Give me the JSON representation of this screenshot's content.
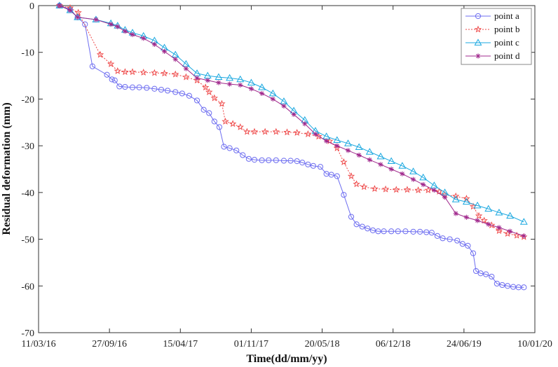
{
  "chart_data": {
    "type": "line",
    "title": "",
    "xlabel": "Time(dd/mm/yy)",
    "ylabel": "Residual deformation (mm)",
    "xlim": [
      "2016-03-11",
      "2020-01-10"
    ],
    "ylim": [
      -70,
      0
    ],
    "x_ticks": [
      "11/03/16",
      "27/09/16",
      "15/04/17",
      "01/11/17",
      "20/05/18",
      "06/12/18",
      "24/06/19",
      "10/01/20"
    ],
    "y_ticks": [
      0,
      -10,
      -20,
      -30,
      -40,
      -50,
      -60,
      -70
    ],
    "grid": false,
    "legend_position": "top-right",
    "series": [
      {
        "name": "point a",
        "color": "#6d6df0",
        "marker": "circle",
        "linestyle": "solid",
        "points": [
          [
            "2016-05-09",
            0
          ],
          [
            "2016-06-08",
            -0.8
          ],
          [
            "2016-06-29",
            -2.5
          ],
          [
            "2016-07-20",
            -4
          ],
          [
            "2016-08-10",
            -13
          ],
          [
            "2016-09-20",
            -14.8
          ],
          [
            "2016-10-04",
            -15.8
          ],
          [
            "2016-10-12",
            -16
          ],
          [
            "2016-10-25",
            -17.3
          ],
          [
            "2016-11-10",
            -17.4
          ],
          [
            "2016-12-01",
            -17.5
          ],
          [
            "2016-12-20",
            -17.5
          ],
          [
            "2017-01-10",
            -17.6
          ],
          [
            "2017-02-01",
            -17.8
          ],
          [
            "2017-02-20",
            -18
          ],
          [
            "2017-03-10",
            -18.2
          ],
          [
            "2017-04-01",
            -18.5
          ],
          [
            "2017-04-20",
            -18.8
          ],
          [
            "2017-05-10",
            -19.3
          ],
          [
            "2017-06-01",
            -20.3
          ],
          [
            "2017-06-20",
            -22.3
          ],
          [
            "2017-07-05",
            -23
          ],
          [
            "2017-07-20",
            -24.8
          ],
          [
            "2017-08-03",
            -26
          ],
          [
            "2017-08-16",
            -30.2
          ],
          [
            "2017-09-01",
            -30.5
          ],
          [
            "2017-09-20",
            -31
          ],
          [
            "2017-10-08",
            -32
          ],
          [
            "2017-10-25",
            -32.8
          ],
          [
            "2017-11-10",
            -33
          ],
          [
            "2017-12-01",
            -33.1
          ],
          [
            "2017-12-20",
            -33.1
          ],
          [
            "2018-01-10",
            -33.1
          ],
          [
            "2018-02-01",
            -33.2
          ],
          [
            "2018-02-20",
            -33.2
          ],
          [
            "2018-03-10",
            -33.3
          ],
          [
            "2018-03-25",
            -33.6
          ],
          [
            "2018-04-10",
            -34
          ],
          [
            "2018-04-25",
            -34.3
          ],
          [
            "2018-05-15",
            -34.5
          ],
          [
            "2018-06-01",
            -36
          ],
          [
            "2018-06-15",
            -36.2
          ],
          [
            "2018-07-01",
            -36.5
          ],
          [
            "2018-07-20",
            -40.5
          ],
          [
            "2018-08-10",
            -45.2
          ],
          [
            "2018-08-25",
            -46.8
          ],
          [
            "2018-09-10",
            -47.3
          ],
          [
            "2018-09-25",
            -47.7
          ],
          [
            "2018-10-10",
            -48.1
          ],
          [
            "2018-10-25",
            -48.3
          ],
          [
            "2018-11-10",
            -48.3
          ],
          [
            "2018-12-01",
            -48.3
          ],
          [
            "2018-12-20",
            -48.3
          ],
          [
            "2019-01-10",
            -48.3
          ],
          [
            "2019-02-01",
            -48.4
          ],
          [
            "2019-02-20",
            -48.4
          ],
          [
            "2019-03-10",
            -48.5
          ],
          [
            "2019-03-25",
            -48.6
          ],
          [
            "2019-04-10",
            -49.3
          ],
          [
            "2019-04-25",
            -49.8
          ],
          [
            "2019-05-15",
            -50
          ],
          [
            "2019-06-05",
            -50.3
          ],
          [
            "2019-06-20",
            -51
          ],
          [
            "2019-07-05",
            -51.4
          ],
          [
            "2019-07-20",
            -53
          ],
          [
            "2019-07-28",
            -56.8
          ],
          [
            "2019-08-10",
            -57.3
          ],
          [
            "2019-08-25",
            -57.5
          ],
          [
            "2019-09-10",
            -58
          ],
          [
            "2019-09-25",
            -59.5
          ],
          [
            "2019-10-10",
            -59.8
          ],
          [
            "2019-10-25",
            -60
          ],
          [
            "2019-11-10",
            -60.2
          ],
          [
            "2019-11-25",
            -60.3
          ],
          [
            "2019-12-10",
            -60.3
          ]
        ]
      },
      {
        "name": "point b",
        "color": "#ee4444",
        "marker": "star",
        "linestyle": "dotted",
        "points": [
          [
            "2016-05-09",
            0
          ],
          [
            "2016-06-08",
            -0.5
          ],
          [
            "2016-07-01",
            -1.5
          ],
          [
            "2016-09-01",
            -10.5
          ],
          [
            "2016-10-01",
            -12.5
          ],
          [
            "2016-10-20",
            -14
          ],
          [
            "2016-11-10",
            -14.2
          ],
          [
            "2016-12-01",
            -14.2
          ],
          [
            "2017-01-01",
            -14.3
          ],
          [
            "2017-02-01",
            -14.4
          ],
          [
            "2017-03-01",
            -14.5
          ],
          [
            "2017-04-01",
            -14.7
          ],
          [
            "2017-05-01",
            -15.3
          ],
          [
            "2017-06-01",
            -16
          ],
          [
            "2017-06-25",
            -17.5
          ],
          [
            "2017-07-05",
            -18.5
          ],
          [
            "2017-07-20",
            -19.8
          ],
          [
            "2017-08-10",
            -21
          ],
          [
            "2017-08-20",
            -24.8
          ],
          [
            "2017-09-10",
            -25.3
          ],
          [
            "2017-10-01",
            -26
          ],
          [
            "2017-10-20",
            -27
          ],
          [
            "2017-11-10",
            -27
          ],
          [
            "2017-12-10",
            -27
          ],
          [
            "2018-01-10",
            -27
          ],
          [
            "2018-02-10",
            -27.1
          ],
          [
            "2018-03-10",
            -27.2
          ],
          [
            "2018-04-10",
            -27.5
          ],
          [
            "2018-05-10",
            -28
          ],
          [
            "2018-06-10",
            -29
          ],
          [
            "2018-07-01",
            -30.5
          ],
          [
            "2018-07-20",
            -33.5
          ],
          [
            "2018-08-10",
            -36.5
          ],
          [
            "2018-08-25",
            -38.2
          ],
          [
            "2018-09-15",
            -38.8
          ],
          [
            "2018-10-15",
            -39.2
          ],
          [
            "2018-11-15",
            -39.3
          ],
          [
            "2018-12-15",
            -39.4
          ],
          [
            "2019-01-15",
            -39.4
          ],
          [
            "2019-02-15",
            -39.5
          ],
          [
            "2019-03-15",
            -39.5
          ],
          [
            "2019-04-15",
            -39.8
          ],
          [
            "2019-05-01",
            -40.5
          ],
          [
            "2019-06-01",
            -40.8
          ],
          [
            "2019-07-01",
            -41.3
          ],
          [
            "2019-07-20",
            -43
          ],
          [
            "2019-08-05",
            -45
          ],
          [
            "2019-08-20",
            -46
          ],
          [
            "2019-09-10",
            -47
          ],
          [
            "2019-10-01",
            -48.2
          ],
          [
            "2019-10-25",
            -48.8
          ],
          [
            "2019-11-20",
            -49.2
          ],
          [
            "2019-12-10",
            -49.5
          ]
        ]
      },
      {
        "name": "point c",
        "color": "#1aa8e0",
        "marker": "triangle",
        "linestyle": "solid",
        "points": [
          [
            "2016-05-09",
            0
          ],
          [
            "2016-06-08",
            -1
          ],
          [
            "2016-06-29",
            -2.5
          ],
          [
            "2016-08-20",
            -3
          ],
          [
            "2016-10-01",
            -3.8
          ],
          [
            "2016-10-20",
            -4.3
          ],
          [
            "2016-11-10",
            -5.2
          ],
          [
            "2016-12-01",
            -5.8
          ],
          [
            "2017-01-01",
            -6.5
          ],
          [
            "2017-02-01",
            -7.5
          ],
          [
            "2017-03-01",
            -9
          ],
          [
            "2017-04-01",
            -10.5
          ],
          [
            "2017-05-01",
            -12.5
          ],
          [
            "2017-06-01",
            -14.5
          ],
          [
            "2017-07-01",
            -15
          ],
          [
            "2017-08-01",
            -15.3
          ],
          [
            "2017-09-01",
            -15.5
          ],
          [
            "2017-10-01",
            -15.8
          ],
          [
            "2017-11-01",
            -16.5
          ],
          [
            "2017-12-01",
            -17.5
          ],
          [
            "2018-01-01",
            -18.8
          ],
          [
            "2018-02-01",
            -20.5
          ],
          [
            "2018-03-01",
            -22.5
          ],
          [
            "2018-04-01",
            -24.5
          ],
          [
            "2018-05-01",
            -26.8
          ],
          [
            "2018-06-01",
            -28
          ],
          [
            "2018-07-01",
            -28.8
          ],
          [
            "2018-08-01",
            -29.5
          ],
          [
            "2018-09-01",
            -30.3
          ],
          [
            "2018-10-01",
            -31.3
          ],
          [
            "2018-11-01",
            -32.3
          ],
          [
            "2018-12-01",
            -33.3
          ],
          [
            "2019-01-01",
            -34.3
          ],
          [
            "2019-02-01",
            -35.5
          ],
          [
            "2019-03-01",
            -36.8
          ],
          [
            "2019-04-01",
            -38.5
          ],
          [
            "2019-05-01",
            -40
          ],
          [
            "2019-06-01",
            -41.5
          ],
          [
            "2019-07-01",
            -42
          ],
          [
            "2019-08-01",
            -42.8
          ],
          [
            "2019-09-01",
            -43.5
          ],
          [
            "2019-10-01",
            -44.3
          ],
          [
            "2019-11-01",
            -45
          ],
          [
            "2019-12-10",
            -46.3
          ]
        ]
      },
      {
        "name": "point d",
        "color": "#a0288c",
        "marker": "asterisk",
        "linestyle": "solid",
        "points": [
          [
            "2016-05-09",
            0
          ],
          [
            "2016-06-08",
            -1
          ],
          [
            "2016-06-29",
            -2.5
          ],
          [
            "2016-08-20",
            -3
          ],
          [
            "2016-10-01",
            -4
          ],
          [
            "2016-10-20",
            -4.5
          ],
          [
            "2016-11-10",
            -5.5
          ],
          [
            "2016-12-01",
            -6.2
          ],
          [
            "2017-01-01",
            -7
          ],
          [
            "2017-02-01",
            -8.3
          ],
          [
            "2017-03-01",
            -9.8
          ],
          [
            "2017-04-01",
            -11.5
          ],
          [
            "2017-05-01",
            -13.5
          ],
          [
            "2017-06-01",
            -15.5
          ],
          [
            "2017-07-01",
            -16
          ],
          [
            "2017-08-01",
            -16.5
          ],
          [
            "2017-09-01",
            -16.8
          ],
          [
            "2017-10-01",
            -17
          ],
          [
            "2017-11-01",
            -17.8
          ],
          [
            "2017-12-01",
            -18.8
          ],
          [
            "2018-01-01",
            -20
          ],
          [
            "2018-02-01",
            -21.5
          ],
          [
            "2018-03-01",
            -23.3
          ],
          [
            "2018-04-01",
            -25.3
          ],
          [
            "2018-05-01",
            -27.5
          ],
          [
            "2018-06-01",
            -29
          ],
          [
            "2018-07-01",
            -30
          ],
          [
            "2018-08-01",
            -31
          ],
          [
            "2018-09-01",
            -32
          ],
          [
            "2018-10-01",
            -33
          ],
          [
            "2018-11-01",
            -34
          ],
          [
            "2018-12-01",
            -35
          ],
          [
            "2019-01-01",
            -36
          ],
          [
            "2019-02-01",
            -37.2
          ],
          [
            "2019-03-01",
            -38.3
          ],
          [
            "2019-04-01",
            -39.5
          ],
          [
            "2019-05-01",
            -41
          ],
          [
            "2019-06-01",
            -44.5
          ],
          [
            "2019-07-01",
            -45.3
          ],
          [
            "2019-08-01",
            -46
          ],
          [
            "2019-09-01",
            -46.8
          ],
          [
            "2019-10-01",
            -47.5
          ],
          [
            "2019-11-01",
            -48.3
          ],
          [
            "2019-12-10",
            -49.3
          ]
        ]
      }
    ]
  }
}
